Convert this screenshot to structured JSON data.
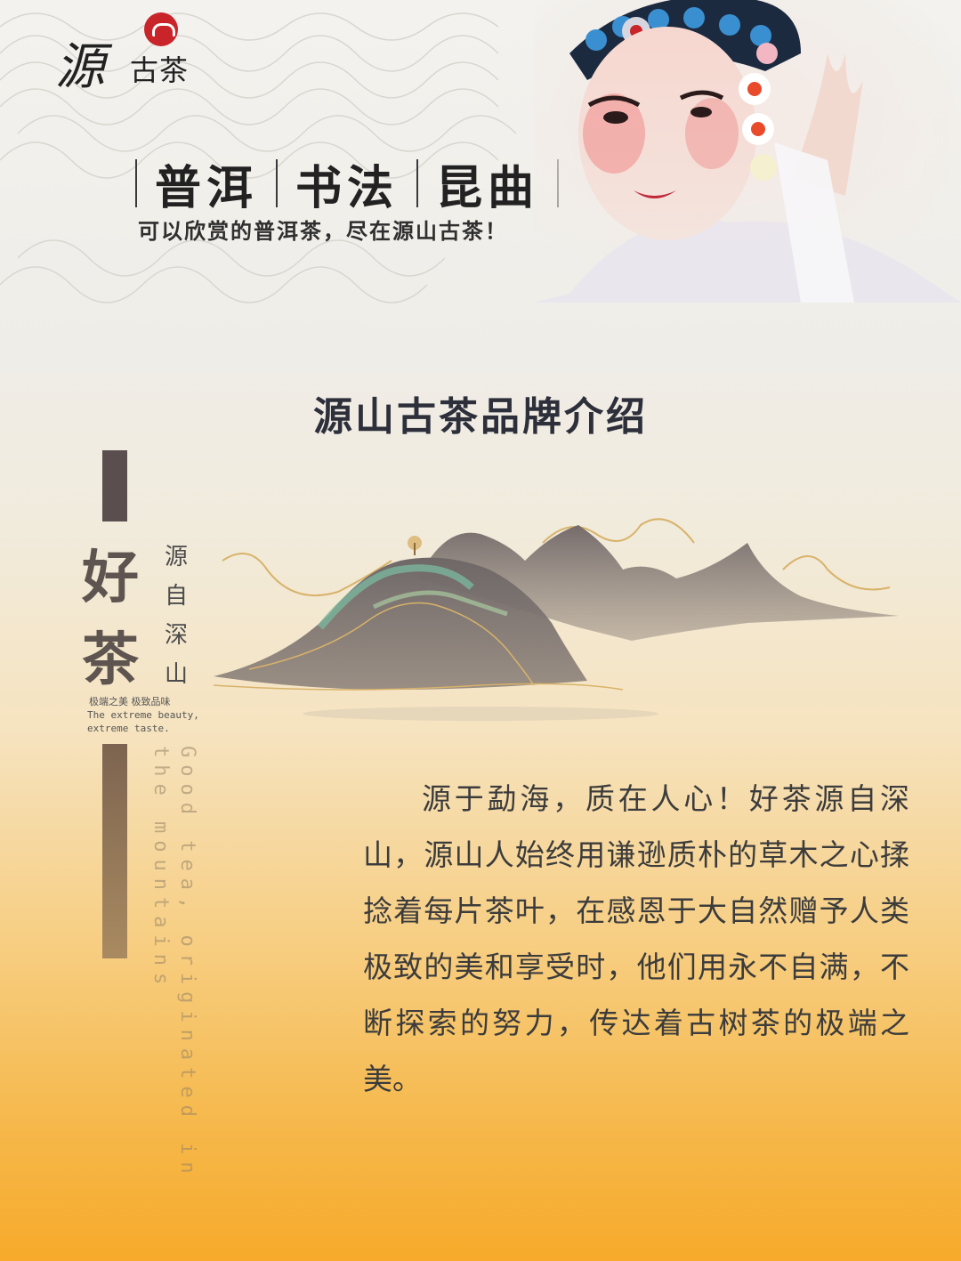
{
  "logo": {
    "script_char": "源",
    "text": "古茶",
    "seal_color": "#c8242a"
  },
  "slogan": {
    "words": [
      "普洱",
      "书法",
      "昆曲"
    ],
    "tagline": "可以欣赏的普洱茶，尽在源山古茶！"
  },
  "title": "源山古茶品牌介绍",
  "side": {
    "big_1": "好",
    "big_2": "茶",
    "small": "源自深山",
    "cn_caption": "极端之美 极致品味",
    "en_caption": "The extreme beauty, extreme taste.",
    "vertical_en": "Good tea, originated in the mountains"
  },
  "body": "源于勐海，质在人心！好茶源自深山，源山人始终用谦逊质朴的草木之心揉捻着每片茶叶，在感恩于大自然赠予人类极致的美和享受时，他们用永不自满，不断探索的努力，传达着古树茶的极端之美。",
  "colors": {
    "accent_dark": "#5a4f4e",
    "gold": "#d8b26a",
    "background_bottom": "#f7aa2b"
  }
}
